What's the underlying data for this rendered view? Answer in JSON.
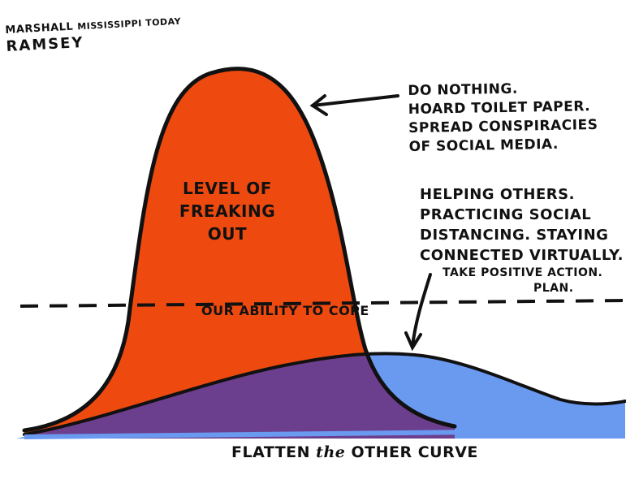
{
  "signature": {
    "artist_line1": "MARSHALL",
    "publication": "MISSISSIPPI TODAY",
    "artist_line2": "RAMSEY"
  },
  "labels": {
    "do_nothing": [
      "DO NOTHING.",
      "HOARD TOILET PAPER.",
      "SPREAD CONSPIRACIES",
      "OF SOCIAL MEDIA."
    ],
    "level_of_freaking_out": [
      "LEVEL of",
      "FREAKING",
      "OUT"
    ],
    "helping_others": [
      "HELPING OTHERS.",
      "PRACTICING SOCIAL",
      "DISTANCING. STAYING",
      "CONNECTED VIRTUALLY."
    ],
    "take_action": "TAKE POSITIVE ACTION.",
    "plan": "PLAN.",
    "ability_to_cope": "OUR ABILITY to COPE"
  },
  "caption": {
    "part1": "FLATTEN ",
    "part2": "the",
    "part3": " OTHER CURVE"
  },
  "colors": {
    "tall_curve": "#ee4a10",
    "flat_curve": "#6a99f0",
    "overlap": "#6c3f8e",
    "ink": "#111111"
  }
}
